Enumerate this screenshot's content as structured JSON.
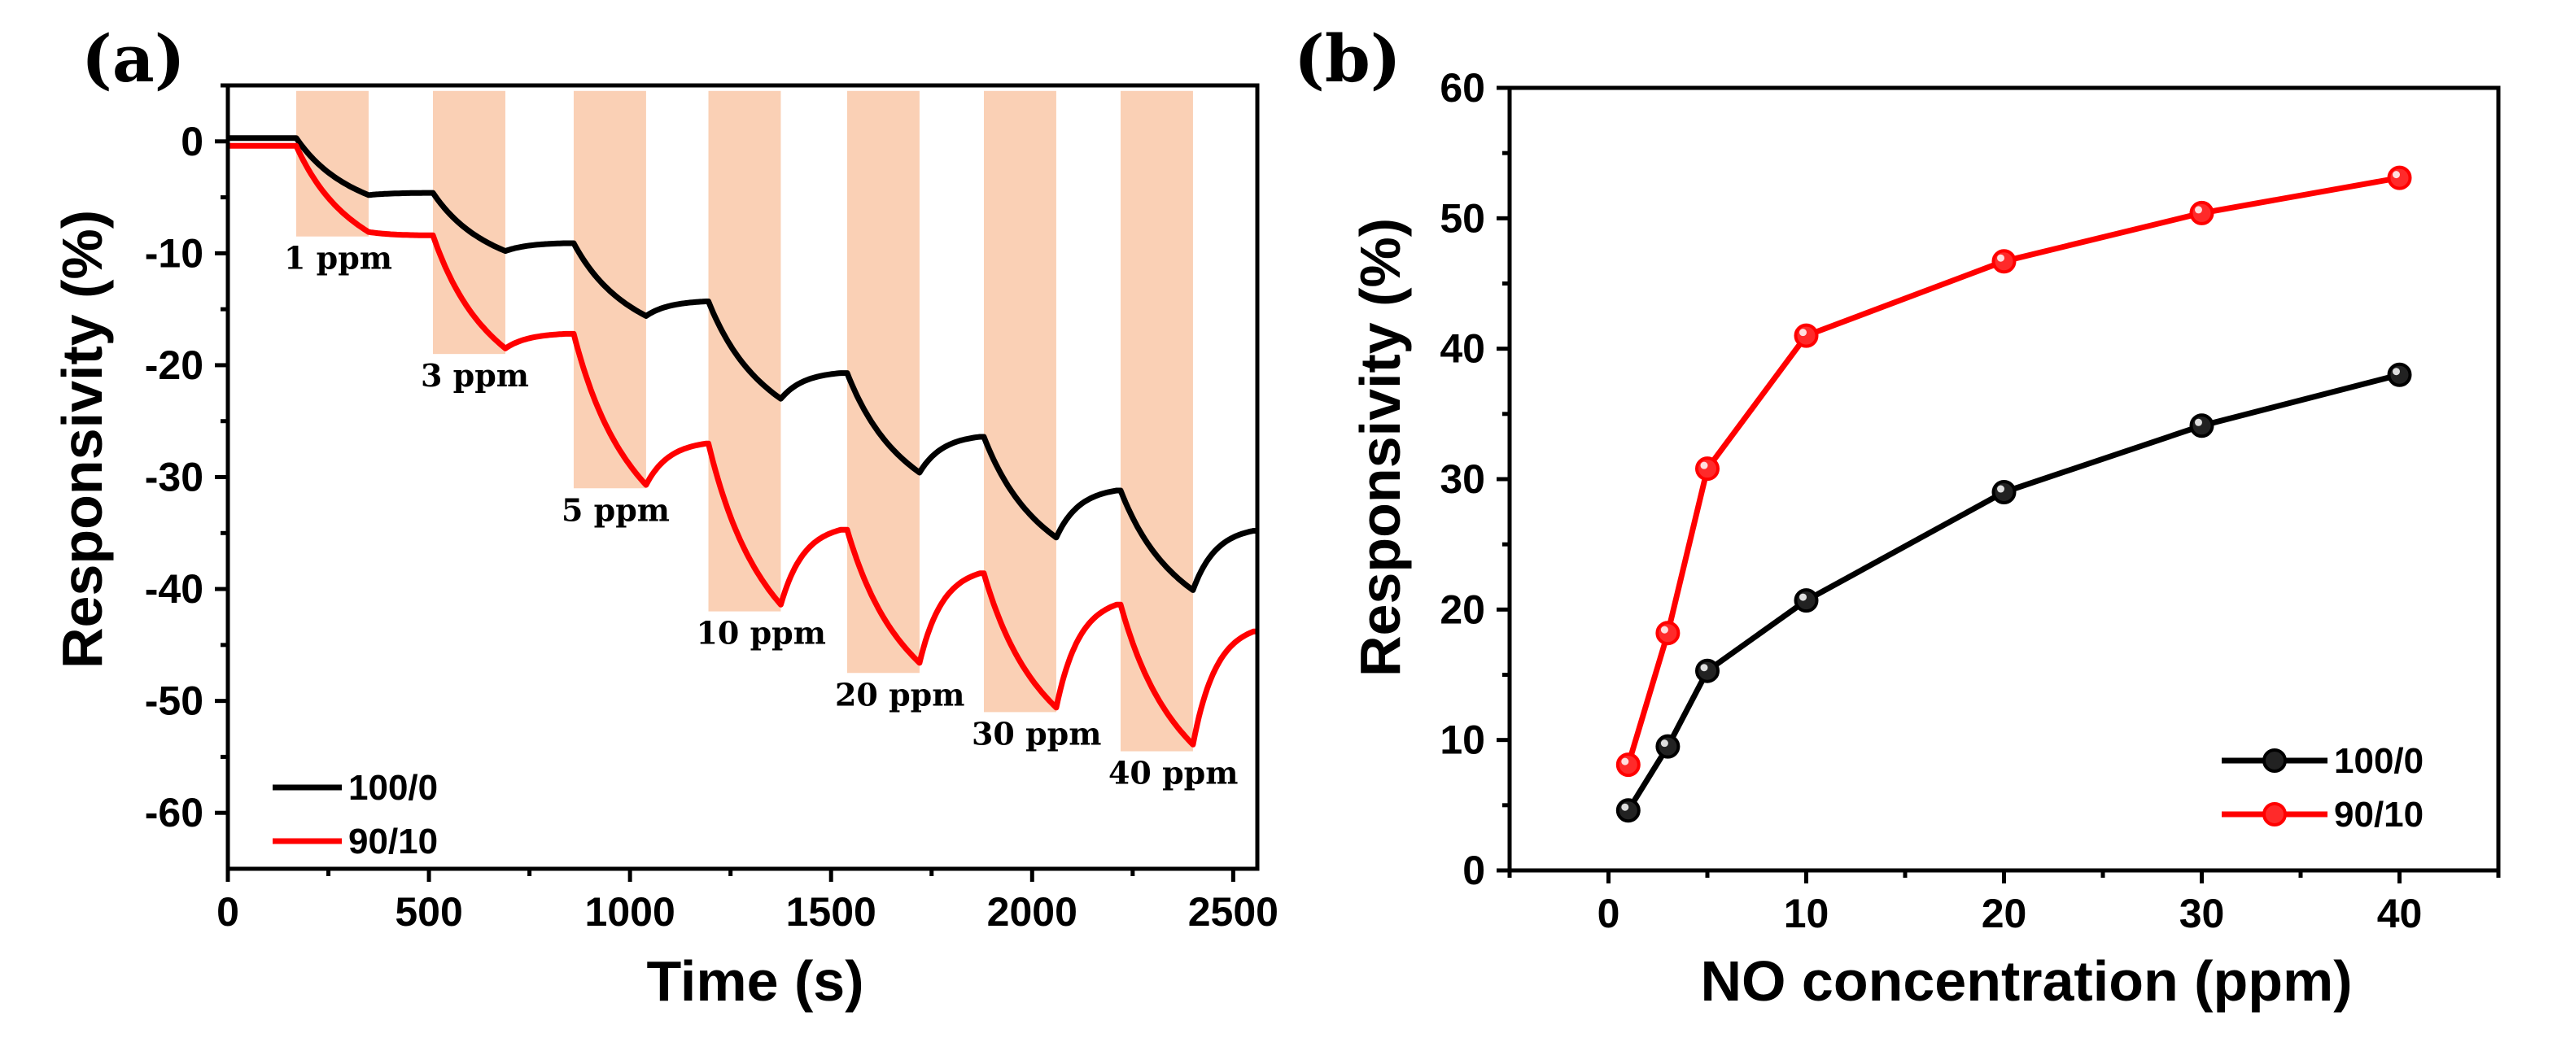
{
  "chart_data": [
    {
      "panel": "(a)",
      "type": "line",
      "title": "",
      "xlabel": "Time (s)",
      "ylabel": "Responsivity (%)",
      "xlim": [
        0,
        2560
      ],
      "ylim": [
        -65,
        5
      ],
      "xticks": [
        0,
        500,
        1000,
        1500,
        2000,
        2500
      ],
      "yticks": [
        0,
        -10,
        -20,
        -30,
        -40,
        -50,
        -60
      ],
      "legend": {
        "position": "bottom-left",
        "entries": [
          "100/0",
          "90/10"
        ]
      },
      "gas_exposure_bands": [
        {
          "x_start": 170,
          "x_end": 350,
          "label": "1 ppm",
          "band_bottom": -8.5
        },
        {
          "x_start": 510,
          "x_end": 690,
          "label": "3 ppm",
          "band_bottom": -19
        },
        {
          "x_start": 860,
          "x_end": 1040,
          "label": "5 ppm",
          "band_bottom": -31
        },
        {
          "x_start": 1195,
          "x_end": 1375,
          "label": "10 ppm",
          "band_bottom": -42
        },
        {
          "x_start": 1540,
          "x_end": 1720,
          "label": "20 ppm",
          "band_bottom": -47.5
        },
        {
          "x_start": 1880,
          "x_end": 2060,
          "label": "30 ppm",
          "band_bottom": -51
        },
        {
          "x_start": 2220,
          "x_end": 2400,
          "label": "40 ppm",
          "band_bottom": -54.5
        }
      ],
      "series": [
        {
          "name": "100/0",
          "color": "#000000",
          "cycles": [
            {
              "on": 170,
              "off": 350,
              "base_start": 0.3,
              "exposure_end": -4.8,
              "recovery_end": -4.6
            },
            {
              "on": 510,
              "off": 690,
              "base_start": -4.6,
              "exposure_end": -9.8,
              "recovery_end": -9.1
            },
            {
              "on": 860,
              "off": 1040,
              "base_start": -9.1,
              "exposure_end": -15.6,
              "recovery_end": -14.3
            },
            {
              "on": 1195,
              "off": 1375,
              "base_start": -14.3,
              "exposure_end": -23.0,
              "recovery_end": -20.7
            },
            {
              "on": 1540,
              "off": 1720,
              "base_start": -20.7,
              "exposure_end": -29.6,
              "recovery_end": -26.4
            },
            {
              "on": 1880,
              "off": 2060,
              "base_start": -26.4,
              "exposure_end": -35.4,
              "recovery_end": -31.2
            },
            {
              "on": 2220,
              "off": 2400,
              "base_start": -31.2,
              "exposure_end": -40.1,
              "recovery_end": -34.8
            }
          ]
        },
        {
          "name": "90/10",
          "color": "#ff0000",
          "cycles": [
            {
              "on": 170,
              "off": 350,
              "base_start": -0.4,
              "exposure_end": -8.1,
              "recovery_end": -8.4
            },
            {
              "on": 510,
              "off": 690,
              "base_start": -8.4,
              "exposure_end": -18.5,
              "recovery_end": -17.2
            },
            {
              "on": 860,
              "off": 1040,
              "base_start": -17.2,
              "exposure_end": -30.7,
              "recovery_end": -27.0
            },
            {
              "on": 1195,
              "off": 1375,
              "base_start": -27.0,
              "exposure_end": -41.4,
              "recovery_end": -34.7
            },
            {
              "on": 1540,
              "off": 1720,
              "base_start": -34.7,
              "exposure_end": -46.6,
              "recovery_end": -38.6
            },
            {
              "on": 1880,
              "off": 2060,
              "base_start": -38.6,
              "exposure_end": -50.6,
              "recovery_end": -41.4
            },
            {
              "on": 2220,
              "off": 2400,
              "base_start": -41.4,
              "exposure_end": -53.9,
              "recovery_end": -43.8
            }
          ]
        }
      ]
    },
    {
      "panel": "(b)",
      "type": "line",
      "title": "",
      "xlabel": "NO concentration (ppm)",
      "ylabel": "Responsivity (%)",
      "xlim": [
        -5,
        45
      ],
      "ylim": [
        0,
        60
      ],
      "xticks": [
        0,
        10,
        20,
        30,
        40
      ],
      "yticks": [
        0,
        10,
        20,
        30,
        40,
        50,
        60
      ],
      "legend": {
        "position": "bottom-right",
        "entries": [
          "100/0",
          "90/10"
        ]
      },
      "x": [
        1,
        3,
        5,
        10,
        20,
        30,
        40
      ],
      "series": [
        {
          "name": "100/0",
          "color": "#000000",
          "values": [
            4.6,
            9.5,
            15.3,
            20.7,
            29.0,
            34.1,
            38.0
          ]
        },
        {
          "name": "90/10",
          "color": "#ff0000",
          "values": [
            8.1,
            18.2,
            30.8,
            41.0,
            46.7,
            50.4,
            53.1
          ]
        }
      ]
    }
  ]
}
